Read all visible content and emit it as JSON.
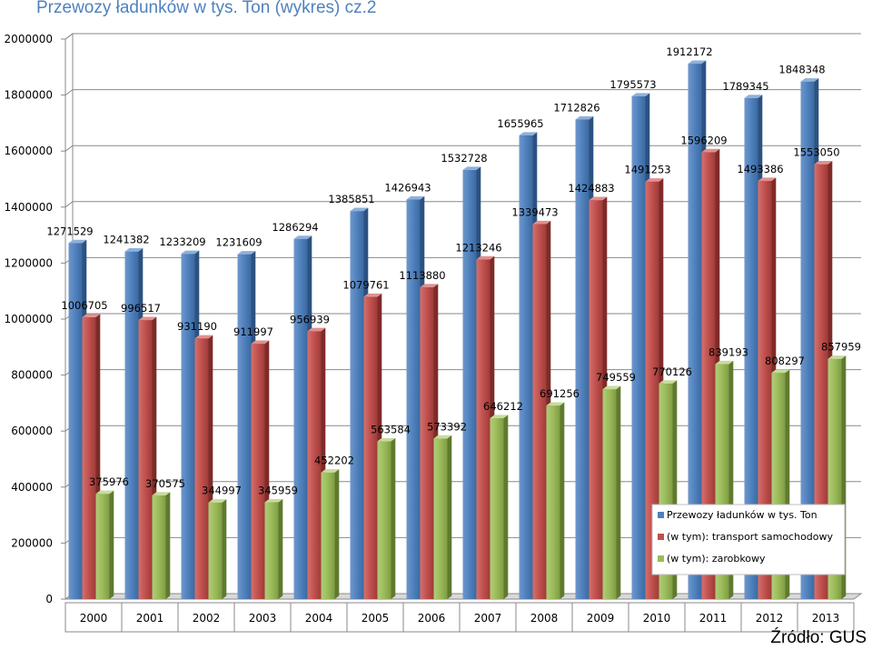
{
  "title": "Przewozy ładunków w tys. Ton (wykres) cz.2",
  "source": "Źródło: GUS",
  "colors": {
    "series1": "#4f81bd",
    "series2": "#c0504d",
    "series3": "#9bbb59",
    "title": "#4f81bd"
  },
  "chart_data": {
    "type": "bar",
    "title": "Przewozy ładunków w tys. Ton (wykres) cz.2",
    "xlabel": "",
    "ylabel": "",
    "ylim": [
      0,
      2000000
    ],
    "yticks": [
      0,
      200000,
      400000,
      600000,
      800000,
      1000000,
      1200000,
      1400000,
      1600000,
      1800000,
      2000000
    ],
    "grid": true,
    "legend_position": "bottom-right",
    "categories": [
      "2000",
      "2001",
      "2002",
      "2003",
      "2004",
      "2005",
      "2006",
      "2007",
      "2008",
      "2009",
      "2010",
      "2011",
      "2012",
      "2013"
    ],
    "series": [
      {
        "name": "Przewozy ładunków w tys. Ton",
        "values": [
          1271529,
          1241382,
          1233209,
          1231609,
          1286294,
          1385851,
          1426943,
          1532728,
          1655965,
          1712826,
          1795573,
          1912172,
          1789345,
          1848348
        ]
      },
      {
        "name": "(w tym): transport samochodowy",
        "values": [
          1006705,
          996517,
          931190,
          911997,
          956939,
          1079761,
          1113880,
          1213246,
          1339473,
          1424883,
          1491253,
          1596209,
          1493386,
          1553050
        ]
      },
      {
        "name": "(w tym): zarobkowy",
        "values": [
          375976,
          370575,
          344997,
          345959,
          452202,
          563584,
          573392,
          646212,
          691256,
          749559,
          770126,
          839193,
          808297,
          857959
        ]
      }
    ]
  }
}
